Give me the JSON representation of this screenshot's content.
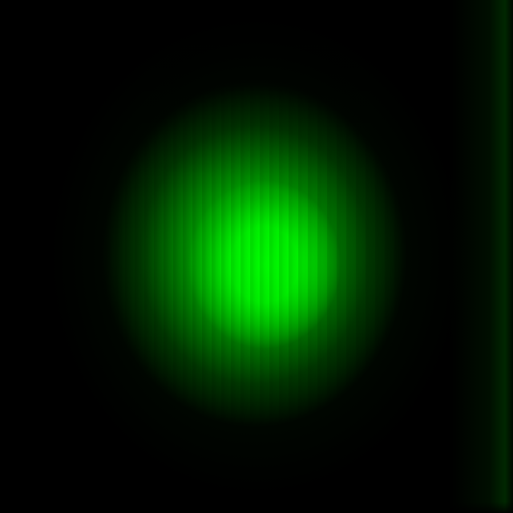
{
  "image": {
    "subject": "green-light-spot",
    "colors": {
      "background": "#000000",
      "core": "#00ff00",
      "mid": "#00c800",
      "halo": "#005a00"
    }
  }
}
